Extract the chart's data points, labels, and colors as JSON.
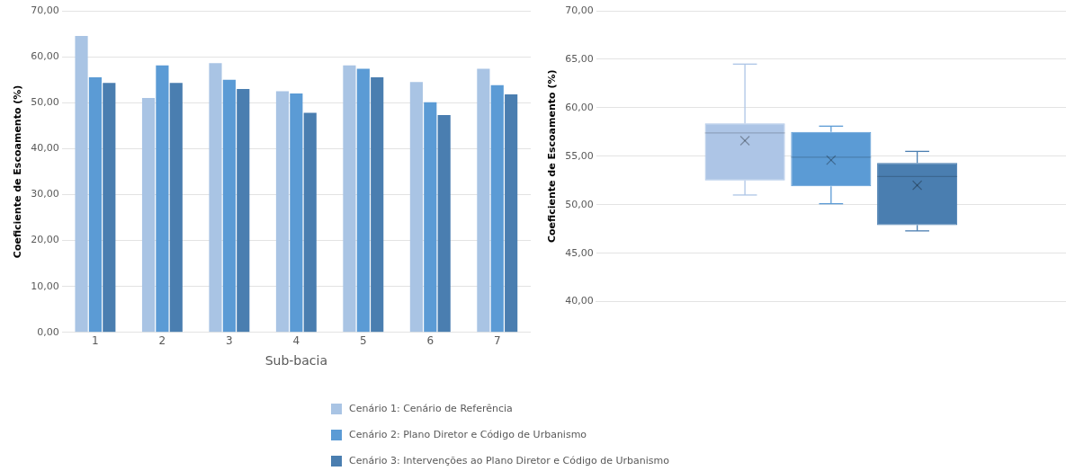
{
  "chart_data": [
    {
      "type": "bar",
      "xlabel": "Sub-bacia",
      "ylabel": "Coeficiente de Escoamento (%)",
      "categories": [
        "1",
        "2",
        "3",
        "4",
        "5",
        "6",
        "7"
      ],
      "series": [
        {
          "name": "Cenário 1: Cenário de Referência",
          "color": "#a9c4e4",
          "values": [
            64.5,
            51.0,
            58.6,
            52.5,
            58.1,
            54.5,
            57.4
          ]
        },
        {
          "name": "Cenário 2: Plano Diretor e Código de Urbanismo",
          "color": "#5b9bd5",
          "values": [
            55.5,
            58.1,
            55.0,
            52.0,
            57.4,
            50.1,
            53.8
          ]
        },
        {
          "name": "Cenário 3: Intervenções ao Plano Diretor e Código de Urbanismo",
          "color": "#4a7eb0",
          "values": [
            54.3,
            54.3,
            53.0,
            47.8,
            55.5,
            47.3,
            51.8
          ]
        }
      ],
      "ylim": [
        0,
        70
      ],
      "yticks": [
        {
          "value": 0,
          "label": "0,00"
        },
        {
          "value": 10,
          "label": "10,00"
        },
        {
          "value": 20,
          "label": "20,00"
        },
        {
          "value": 30,
          "label": "30,00"
        },
        {
          "value": 40,
          "label": "40,00"
        },
        {
          "value": 50,
          "label": "50,00"
        },
        {
          "value": 60,
          "label": "60,00"
        },
        {
          "value": 70,
          "label": "70,00"
        }
      ],
      "grid": "y",
      "legend": "bottom"
    },
    {
      "type": "box",
      "ylabel": "Coeficiente de Escoamento (%)",
      "categories": [
        null
      ],
      "series": [
        {
          "color": "#adc5e6",
          "boxes": [
            {
              "low": 51.0,
              "q1": 52.5,
              "median": 57.4,
              "q3": 58.4,
              "high": 64.5,
              "mean": 56.6
            }
          ]
        },
        {
          "color": "#5b9bd5",
          "boxes": [
            {
              "low": 50.1,
              "q1": 51.9,
              "median": 54.9,
              "q3": 57.5,
              "high": 58.1,
              "mean": 54.6
            }
          ]
        },
        {
          "color": "#4a7eb0",
          "boxes": [
            {
              "low": 47.3,
              "q1": 47.9,
              "median": 52.9,
              "q3": 54.3,
              "high": 55.5,
              "mean": 52.0
            }
          ]
        }
      ],
      "ylim": [
        40,
        70
      ],
      "yticks": [
        {
          "value": 40,
          "label": "40,00"
        },
        {
          "value": 45,
          "label": "45,00"
        },
        {
          "value": 50,
          "label": "50,00"
        },
        {
          "value": 55,
          "label": "55,00"
        },
        {
          "value": 60,
          "label": "60,00"
        },
        {
          "value": 65,
          "label": "65,00"
        },
        {
          "value": 70,
          "label": "70,00"
        }
      ],
      "grid": "y"
    }
  ]
}
